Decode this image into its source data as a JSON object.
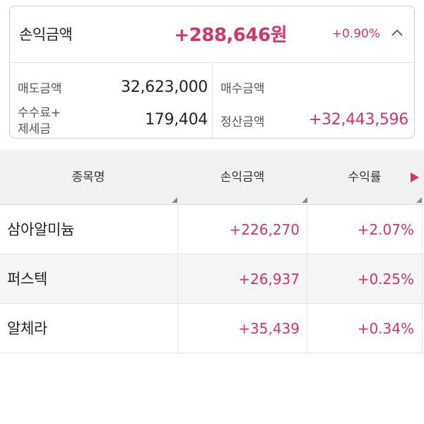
{
  "summary": {
    "title": "손익금액",
    "profit_amount": "+288,646원",
    "profit_rate": "+0.90%",
    "collapse_icon": "chevron-up-icon",
    "sell_amount_label": "매도금액",
    "sell_amount_value": "32,623,000",
    "buy_amount_label": "매수금액",
    "buy_amount_value": "",
    "fee_tax_label_line1": "수수료+",
    "fee_tax_label_line2": "제세금",
    "fee_tax_value": "179,404",
    "settlement_label": "정산금액",
    "settlement_value": "+32,443,596"
  },
  "table": {
    "headers": [
      "종목명",
      "손익금액",
      "수익률"
    ],
    "scroll_icon": "caret-right-icon",
    "rows": [
      {
        "name": "삼아알미늄",
        "profit": "+226,270",
        "rate": "+2.07%"
      },
      {
        "name": "퍼스텍",
        "profit": "+26,937",
        "rate": "+0.25%"
      },
      {
        "name": "알체라",
        "profit": "+35,439",
        "rate": "+0.34%"
      }
    ]
  },
  "colors": {
    "positive": "#d6336c",
    "header_bg": "#f2f2f2",
    "accent_arrow": "#d6336c"
  }
}
